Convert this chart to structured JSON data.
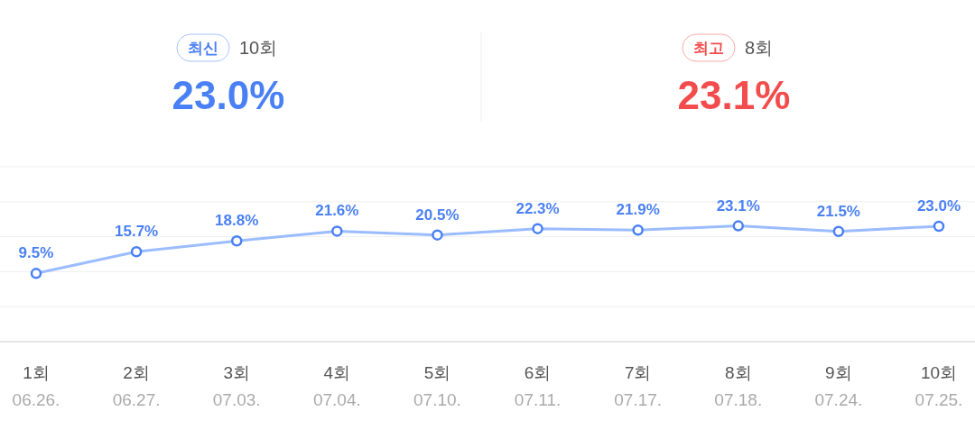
{
  "chart_data": {
    "type": "line",
    "annotations": [
      "최신",
      "10회",
      "23.0%",
      "최고",
      "8회",
      "23.1%"
    ],
    "categories": [
      "1회\n06.26.",
      "2회\n06.27.",
      "3회\n07.03.",
      "4회\n07.04.",
      "5회\n07.10.",
      "6회\n07.11.",
      "7회\n07.17.",
      "8회\n07.18.",
      "9회\n07.24.",
      "10회\n07.25."
    ],
    "series": [
      {
        "color": "#9bbcff",
        "values": [
          9.5,
          15.7,
          18.8,
          21.6,
          20.5,
          22.3,
          21.9,
          23.1,
          21.5,
          23.0
        ]
      }
    ],
    "value_labels": [
      "9.5%",
      "15.7%",
      "18.8%",
      "21.6%",
      "20.5%",
      "22.3%",
      "21.9%",
      "23.1%",
      "21.5%",
      "23.0%"
    ],
    "ylim": [
      -10,
      40
    ],
    "yticks": [
      {
        "value": -10,
        "label": null
      },
      {
        "value": 0,
        "label": null
      },
      {
        "value": 10,
        "label": null
      },
      {
        "value": 20,
        "label": null
      },
      {
        "value": 30,
        "label": null
      },
      {
        "value": 40,
        "label": null
      }
    ],
    "data_labels": true,
    "grid": "y",
    "marker": "circle",
    "line_style": "solid",
    "tick_labels": "x"
  }
}
